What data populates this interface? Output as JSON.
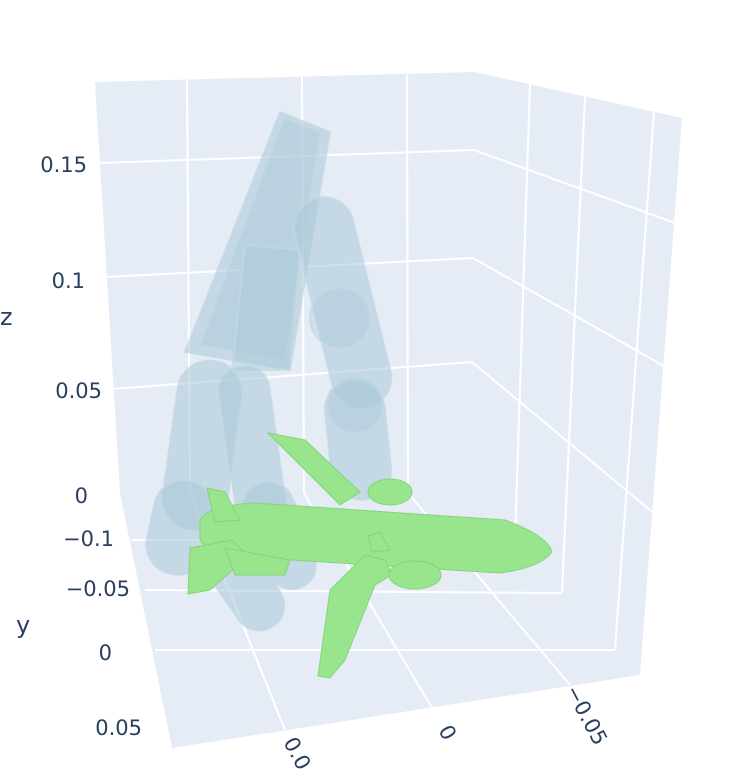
{
  "scene": {
    "background_color": "#ffffff",
    "pane_color": "#e5ecf6",
    "grid_color": "#ffffff",
    "hand_color": "#a9c9d7",
    "object_color": "#98e58e",
    "object_shape": "airplane",
    "text_color": "#2a3f5f"
  },
  "axes": {
    "z": {
      "title": "z",
      "ticks": [
        "0",
        "0.05",
        "0.1",
        "0.15"
      ]
    },
    "y": {
      "title": "y",
      "ticks": [
        "-0.1",
        "-0.05",
        "0",
        "0.05"
      ]
    },
    "x": {
      "title": "",
      "ticks": [
        "0.0",
        "0",
        "-0.05"
      ]
    }
  }
}
